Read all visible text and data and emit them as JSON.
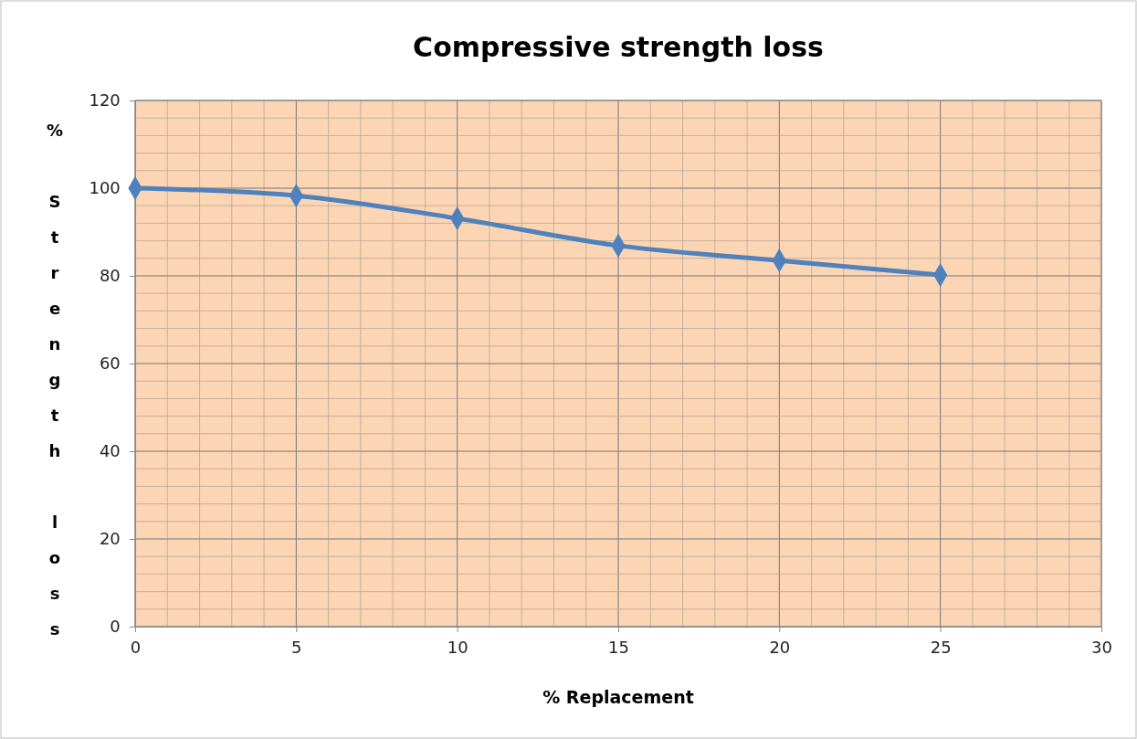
{
  "chart_data": {
    "type": "line",
    "title": "Compressive strength loss",
    "xlabel": "% Replacement",
    "ylabel": "% Strength loss",
    "x": [
      0,
      5,
      10,
      15,
      20,
      25
    ],
    "series": [
      {
        "color": "#4f81bd",
        "values": [
          100,
          98.3,
          93.1,
          86.9,
          83.5,
          80.2
        ]
      }
    ],
    "xlim": [
      0,
      30
    ],
    "xticks": [
      0,
      5,
      10,
      15,
      20,
      25,
      30
    ],
    "ylim": [
      0,
      120
    ],
    "yticks": [
      0,
      20,
      40,
      60,
      80,
      100,
      120
    ],
    "grid": true,
    "marker": "diamond",
    "line_style": "solid"
  }
}
